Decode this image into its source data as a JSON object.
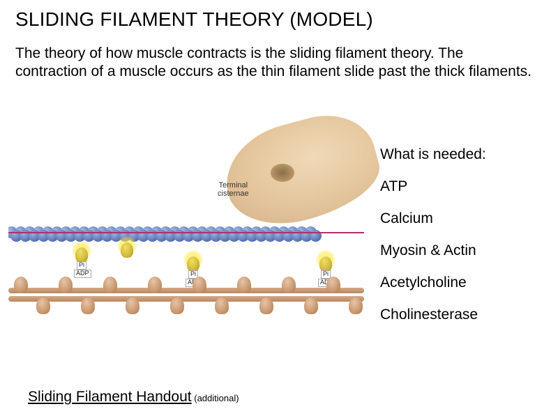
{
  "title": "SLIDING FILAMENT THEORY (MODEL)",
  "body": "The theory of how muscle contracts is the sliding filament theory. The contraction of a muscle occurs as the thin filament slide past the thick filaments.",
  "diagram": {
    "tc_label_line1": "Terminal",
    "tc_label_line2": "cisternae",
    "molecules": {
      "pi": "Pi",
      "adp": "ADP"
    },
    "colors": {
      "actin_light": "#a8bce0",
      "actin_dark": "#4a5f9a",
      "tropomyosin": "#b0306a",
      "myosin": "#c89870",
      "terminal": "#e5c79e",
      "glow": "#ffe050"
    }
  },
  "needed": {
    "heading": "What is needed:",
    "items": [
      "ATP",
      "Calcium",
      "Myosin & Actin",
      "Acetylcholine",
      "Cholinesterase"
    ]
  },
  "handout": {
    "link_text": "Sliding Filament Handout",
    "suffix": " (additional)"
  }
}
